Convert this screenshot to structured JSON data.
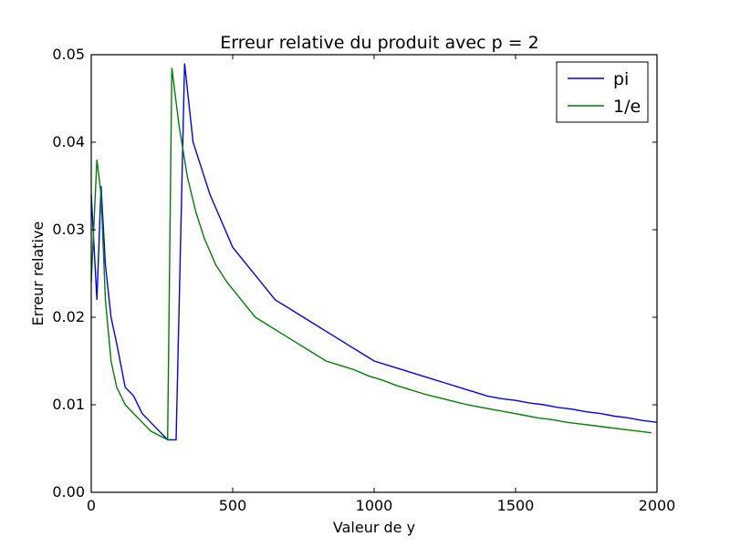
{
  "chart_data": {
    "type": "line",
    "title": "Erreur relative du produit avec p = 2",
    "xlabel": "Valeur de y",
    "ylabel": "Erreur relative",
    "xlim": [
      0,
      2000
    ],
    "ylim": [
      0,
      0.05
    ],
    "xticks": [
      {
        "value": 0,
        "label": "0"
      },
      {
        "value": 500,
        "label": "500"
      },
      {
        "value": 1000,
        "label": "1000"
      },
      {
        "value": 1500,
        "label": "1500"
      },
      {
        "value": 2000,
        "label": "2000"
      }
    ],
    "yticks": [
      {
        "value": 0,
        "label": "0.00"
      },
      {
        "value": 0.01,
        "label": "0.01"
      },
      {
        "value": 0.02,
        "label": "0.02"
      },
      {
        "value": 0.03,
        "label": "0.03"
      },
      {
        "value": 0.04,
        "label": "0.04"
      },
      {
        "value": 0.05,
        "label": "0.05"
      }
    ],
    "grid": false,
    "legend": "top-right",
    "series": [
      {
        "name": "pi",
        "color": "#0000ff",
        "x": [
          0,
          20,
          35,
          50,
          70,
          90,
          120,
          150,
          180,
          210,
          240,
          270,
          300,
          330,
          360,
          390,
          420,
          460,
          500,
          550,
          600,
          650,
          700,
          750,
          800,
          850,
          900,
          950,
          1000,
          1050,
          1100,
          1150,
          1200,
          1250,
          1300,
          1350,
          1400,
          1450,
          1500,
          1550,
          1600,
          1650,
          1700,
          1750,
          1800,
          1850,
          1900,
          1950,
          2000
        ],
        "y": [
          0.034,
          0.022,
          0.035,
          0.026,
          0.02,
          0.017,
          0.012,
          0.011,
          0.009,
          0.008,
          0.007,
          0.006,
          0.006,
          0.049,
          0.04,
          0.037,
          0.034,
          0.031,
          0.028,
          0.026,
          0.024,
          0.022,
          0.021,
          0.02,
          0.019,
          0.018,
          0.017,
          0.016,
          0.015,
          0.0145,
          0.014,
          0.0135,
          0.013,
          0.0125,
          0.012,
          0.0115,
          0.011,
          0.0107,
          0.0105,
          0.0102,
          0.01,
          0.0097,
          0.0095,
          0.0092,
          0.009,
          0.0087,
          0.0085,
          0.0082,
          0.008
        ]
      },
      {
        "name": "1/e",
        "color": "#008000",
        "x": [
          0,
          20,
          35,
          50,
          70,
          90,
          120,
          150,
          180,
          210,
          240,
          270,
          285,
          310,
          340,
          370,
          400,
          440,
          480,
          530,
          580,
          630,
          680,
          730,
          780,
          830,
          880,
          930,
          980,
          1030,
          1080,
          1130,
          1180,
          1230,
          1280,
          1330,
          1380,
          1430,
          1480,
          1530,
          1580,
          1630,
          1680,
          1730,
          1780,
          1830,
          1880,
          1930,
          1980
        ],
        "y": [
          0.024,
          0.038,
          0.034,
          0.022,
          0.015,
          0.012,
          0.01,
          0.009,
          0.008,
          0.007,
          0.0065,
          0.006,
          0.0485,
          0.042,
          0.036,
          0.032,
          0.029,
          0.026,
          0.024,
          0.022,
          0.02,
          0.019,
          0.018,
          0.017,
          0.016,
          0.015,
          0.0145,
          0.014,
          0.0133,
          0.0128,
          0.0122,
          0.0117,
          0.0112,
          0.0108,
          0.0104,
          0.01,
          0.0097,
          0.0094,
          0.0091,
          0.0088,
          0.0085,
          0.0083,
          0.008,
          0.0078,
          0.0076,
          0.0074,
          0.0072,
          0.007,
          0.0068
        ]
      }
    ]
  }
}
